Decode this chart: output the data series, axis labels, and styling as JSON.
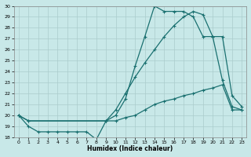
{
  "xlabel": "Humidex (Indice chaleur)",
  "bg_color": "#c8e8e8",
  "line_color": "#1a7070",
  "grid_color": "#b0d0d0",
  "xmin": -0.5,
  "xmax": 23.5,
  "ymin": 18,
  "ymax": 30,
  "yticks": [
    18,
    19,
    20,
    21,
    22,
    23,
    24,
    25,
    26,
    27,
    28,
    29,
    30
  ],
  "xticks": [
    0,
    1,
    2,
    3,
    4,
    5,
    6,
    7,
    8,
    9,
    10,
    11,
    12,
    13,
    14,
    15,
    16,
    17,
    18,
    19,
    20,
    21,
    22,
    23
  ],
  "line1_x": [
    0,
    1,
    2,
    3,
    4,
    5,
    6,
    7,
    8,
    9,
    10,
    11,
    12,
    13,
    14,
    15,
    16,
    17,
    18,
    19,
    20,
    21,
    22,
    23
  ],
  "line1_y": [
    20.0,
    19.0,
    18.5,
    18.5,
    18.5,
    18.5,
    18.5,
    18.5,
    17.8,
    19.5,
    19.5,
    19.8,
    20.0,
    20.5,
    21.0,
    21.3,
    21.5,
    21.8,
    22.0,
    22.3,
    22.5,
    22.8,
    20.5,
    20.5
  ],
  "line2_x": [
    0,
    1,
    9,
    10,
    11,
    12,
    13,
    14,
    15,
    16,
    17,
    18,
    19,
    20,
    21,
    22,
    23
  ],
  "line2_y": [
    20.0,
    19.5,
    19.5,
    20.5,
    22.0,
    23.5,
    24.8,
    26.0,
    27.2,
    28.2,
    29.0,
    29.5,
    29.2,
    27.2,
    23.2,
    20.8,
    20.5
  ],
  "line3_x": [
    0,
    1,
    9,
    10,
    11,
    12,
    13,
    14,
    15,
    16,
    17,
    18,
    19,
    20,
    21,
    22,
    23
  ],
  "line3_y": [
    20.0,
    19.5,
    19.5,
    20.0,
    21.5,
    24.5,
    27.2,
    30.0,
    29.5,
    29.5,
    29.5,
    29.0,
    27.2,
    27.2,
    27.2,
    21.8,
    20.8
  ]
}
